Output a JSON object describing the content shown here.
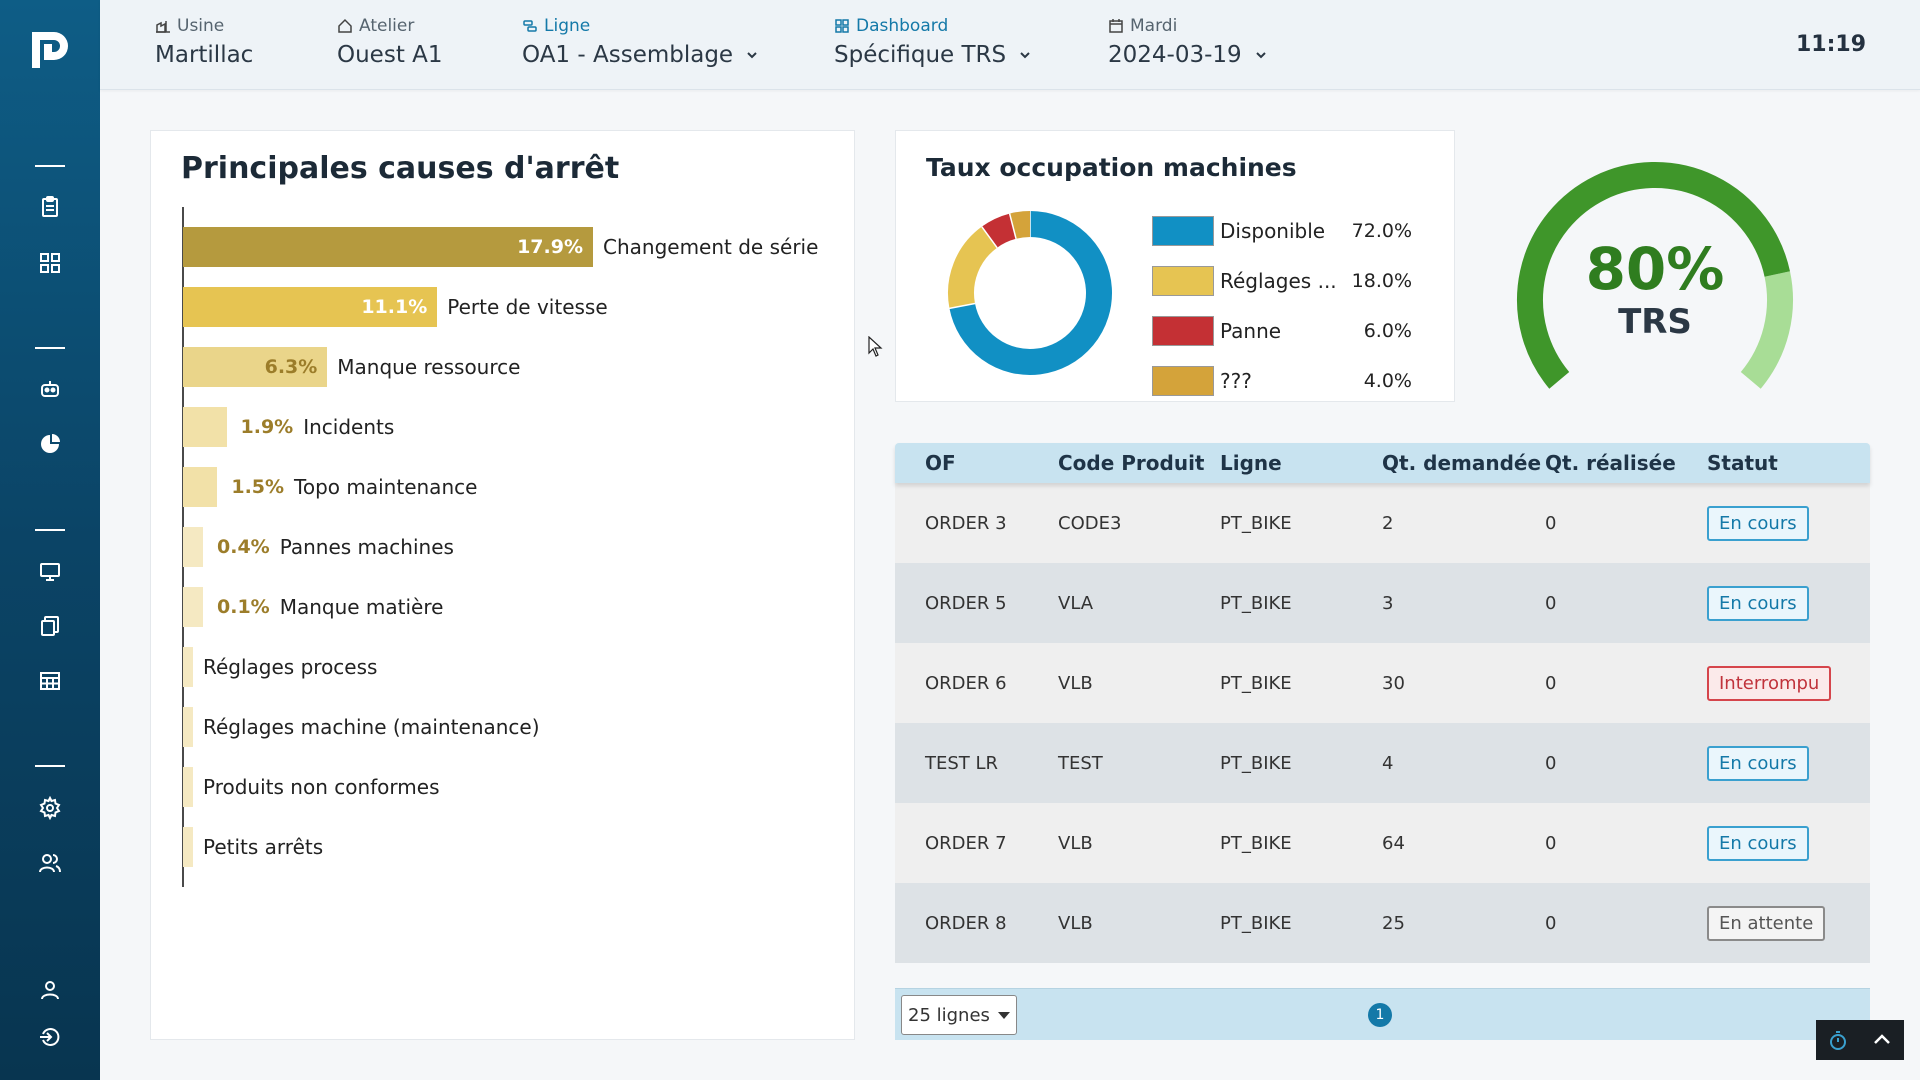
{
  "topbar": {
    "usine": {
      "label": "Usine",
      "value": "Martillac"
    },
    "atelier": {
      "label": "Atelier",
      "value": "Ouest A1"
    },
    "ligne": {
      "label": "Ligne",
      "value": "OA1 - Assemblage"
    },
    "dashboard": {
      "label": "Dashboard",
      "value": "Spécifique TRS"
    },
    "date": {
      "label": "Mardi",
      "value": "2024-03-19"
    },
    "clock": "11:19"
  },
  "causes": {
    "title": "Principales causes d'arrêt",
    "items": [
      {
        "pct": "17.9%",
        "label": "Changement de série"
      },
      {
        "pct": "11.1%",
        "label": "Perte de vitesse"
      },
      {
        "pct": "6.3%",
        "label": "Manque ressource"
      },
      {
        "pct": "1.9%",
        "label": "Incidents"
      },
      {
        "pct": "1.5%",
        "label": "Topo maintenance"
      },
      {
        "pct": "0.4%",
        "label": "Pannes machines"
      },
      {
        "pct": "0.1%",
        "label": "Manque matière"
      },
      {
        "pct": "",
        "label": "Réglages process"
      },
      {
        "pct": "",
        "label": "Réglages machine (maintenance)"
      },
      {
        "pct": "",
        "label": "Produits non conformes"
      },
      {
        "pct": "",
        "label": "Petits arrêts"
      }
    ]
  },
  "occupation": {
    "title": "Taux occupation machines",
    "items": [
      {
        "name": "Disponible",
        "value": "72.0%",
        "color": "#1190c4"
      },
      {
        "name": "Réglages ...",
        "value": "18.0%",
        "color": "#e6c452"
      },
      {
        "name": "Panne",
        "value": "6.0%",
        "color": "#c43034"
      },
      {
        "name": "???",
        "value": "4.0%",
        "color": "#d4a33a"
      }
    ]
  },
  "gauge": {
    "value": "80%",
    "label": "TRS",
    "fraction": 0.8,
    "color_main": "#3f962a",
    "color_rest": "#a8dd96"
  },
  "table": {
    "headers": [
      "OF",
      "Code Produit",
      "Ligne",
      "Qt. demandée",
      "Qt. réalisée",
      "Statut"
    ],
    "rows": [
      {
        "of": "ORDER 3",
        "code": "CODE3",
        "ligne": "PT_BIKE",
        "qd": "2",
        "qr": "0",
        "statut": "En cours",
        "type": "info"
      },
      {
        "of": "ORDER 5",
        "code": "VLA",
        "ligne": "PT_BIKE",
        "qd": "3",
        "qr": "0",
        "statut": "En cours",
        "type": "info"
      },
      {
        "of": "ORDER 6",
        "code": "VLB",
        "ligne": "PT_BIKE",
        "qd": "30",
        "qr": "0",
        "statut": "Interrompu",
        "type": "danger"
      },
      {
        "of": "TEST LR",
        "code": "TEST",
        "ligne": "PT_BIKE",
        "qd": "4",
        "qr": "0",
        "statut": "En cours",
        "type": "info"
      },
      {
        "of": "ORDER 7",
        "code": "VLB",
        "ligne": "PT_BIKE",
        "qd": "64",
        "qr": "0",
        "statut": "En cours",
        "type": "info"
      },
      {
        "of": "ORDER 8",
        "code": "VLB",
        "ligne": "PT_BIKE",
        "qd": "25",
        "qr": "0",
        "statut": "En attente",
        "type": "muted"
      }
    ],
    "page_size": "25 lignes",
    "current_page": "1"
  },
  "chart_data": [
    {
      "type": "bar",
      "title": "Principales causes d'arrêt",
      "categories": [
        "Changement de série",
        "Perte de vitesse",
        "Manque ressource",
        "Incidents",
        "Topo maintenance",
        "Pannes machines",
        "Manque matière",
        "Réglages process",
        "Réglages machine (maintenance)",
        "Produits non conformes",
        "Petits arrêts"
      ],
      "values": [
        17.9,
        11.1,
        6.3,
        1.9,
        1.5,
        0.4,
        0.1,
        0,
        0,
        0,
        0
      ],
      "xlabel": "",
      "ylabel": ""
    },
    {
      "type": "pie",
      "title": "Taux occupation machines",
      "categories": [
        "Disponible",
        "Réglages ...",
        "Panne",
        "???"
      ],
      "values": [
        72.0,
        18.0,
        6.0,
        4.0
      ]
    }
  ]
}
